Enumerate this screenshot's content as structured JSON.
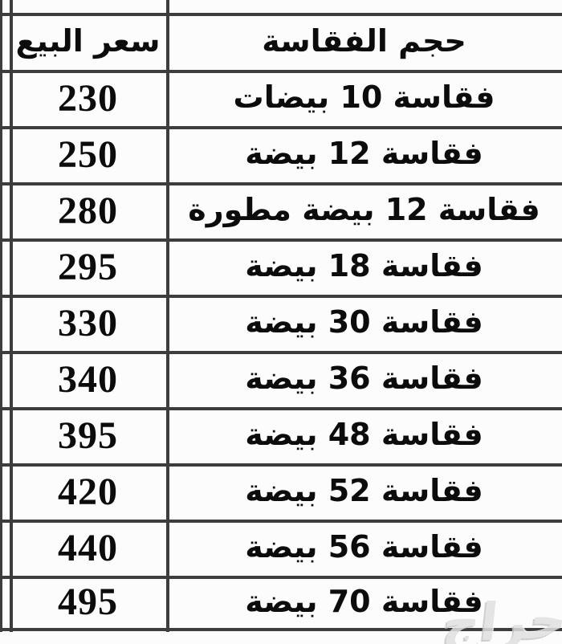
{
  "table": {
    "header": {
      "price_label": "سعر البيع",
      "size_label": "حجم الفقاسة"
    },
    "rows": [
      {
        "price": "230",
        "size": "فقاسة 10 بيضات"
      },
      {
        "price": "250",
        "size": "فقاسة 12 بيضة"
      },
      {
        "price": "280",
        "size": "فقاسة 12 بيضة مطورة"
      },
      {
        "price": "295",
        "size": "فقاسة 18 بيضة"
      },
      {
        "price": "330",
        "size": "فقاسة 30 بيضة"
      },
      {
        "price": "340",
        "size": "فقاسة 36 بيضة"
      },
      {
        "price": "395",
        "size": "فقاسة 48 بيضة"
      },
      {
        "price": "420",
        "size": "فقاسة 52 بيضة"
      },
      {
        "price": "440",
        "size": "فقاسة 56 بيضة"
      },
      {
        "price": "495",
        "size": "فقاسة 70 بيضة"
      }
    ]
  },
  "watermark": {
    "text": "حراج"
  },
  "colors": {
    "border": "#3d3d3d",
    "text": "#0c0c0c",
    "background": "#fcfcfc",
    "watermark": "#e0e0e0"
  }
}
